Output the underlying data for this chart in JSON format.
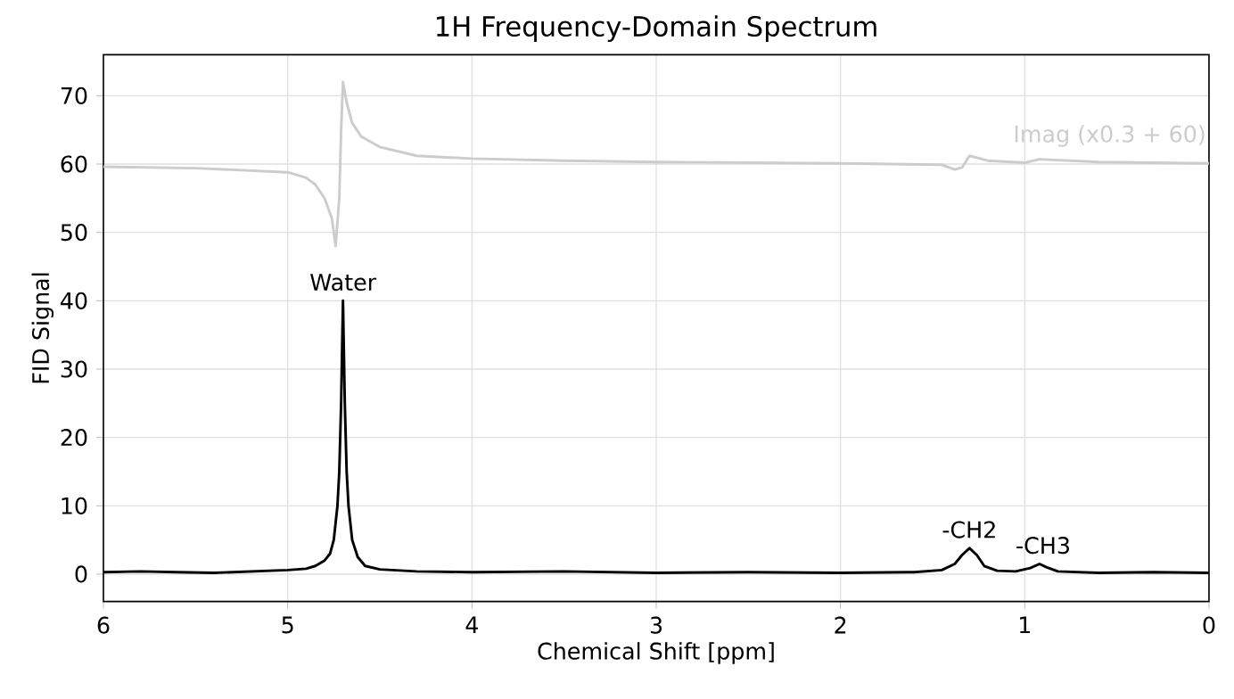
{
  "chart_data": {
    "type": "line",
    "title": "1H Frequency-Domain Spectrum",
    "xlabel": "Chemical Shift [ppm]",
    "ylabel": "FID Signal",
    "xlim": [
      6,
      0
    ],
    "ylim": [
      -4,
      76
    ],
    "xticks": [
      6,
      5,
      4,
      3,
      2,
      1,
      0
    ],
    "yticks": [
      0,
      10,
      20,
      30,
      40,
      50,
      60,
      70
    ],
    "grid": true,
    "legend": false,
    "series": [
      {
        "color": "#000000",
        "x": [
          6,
          5.8,
          5.6,
          5.4,
          5.2,
          5.0,
          4.9,
          4.85,
          4.8,
          4.77,
          4.75,
          4.73,
          4.72,
          4.71,
          4.7,
          4.69,
          4.68,
          4.67,
          4.65,
          4.62,
          4.58,
          4.5,
          4.3,
          4.0,
          3.5,
          3.0,
          2.5,
          2.0,
          1.6,
          1.45,
          1.38,
          1.34,
          1.3,
          1.26,
          1.22,
          1.15,
          1.05,
          0.97,
          0.92,
          0.88,
          0.82,
          0.6,
          0.3,
          0
        ],
        "values": [
          0.3,
          0.4,
          0.3,
          0.2,
          0.4,
          0.6,
          0.8,
          1.2,
          2,
          3,
          5,
          10,
          15,
          25,
          40,
          25,
          15,
          10,
          5,
          2.5,
          1.2,
          0.7,
          0.4,
          0.3,
          0.4,
          0.2,
          0.3,
          0.2,
          0.3,
          0.6,
          1.5,
          2.8,
          3.8,
          2.8,
          1.2,
          0.5,
          0.4,
          0.9,
          1.5,
          1.0,
          0.4,
          0.2,
          0.3,
          0.2
        ]
      },
      {
        "name": "Imag (x0.3 + 60)",
        "color": "#cccccc",
        "x": [
          6,
          5.5,
          5.0,
          4.9,
          4.85,
          4.8,
          4.76,
          4.74,
          4.72,
          4.71,
          4.7,
          4.68,
          4.65,
          4.6,
          4.5,
          4.3,
          4.0,
          3.5,
          3.0,
          2.0,
          1.45,
          1.38,
          1.34,
          1.3,
          1.2,
          1.0,
          0.92,
          0.6,
          0
        ],
        "values": [
          59.6,
          59.4,
          58.8,
          58,
          57,
          55,
          52,
          48,
          55,
          65,
          72,
          69,
          66,
          64,
          62.5,
          61.2,
          60.8,
          60.5,
          60.3,
          60.1,
          59.9,
          59.2,
          59.5,
          61.2,
          60.5,
          60.2,
          60.7,
          60.3,
          60.1
        ]
      }
    ],
    "annotations": [
      {
        "text": "Water",
        "x": 4.7,
        "y": 40
      },
      {
        "text": "-CH2",
        "x": 1.3,
        "y": 3.8
      },
      {
        "text": "-CH3",
        "x": 0.9,
        "y": 1.5
      }
    ]
  }
}
